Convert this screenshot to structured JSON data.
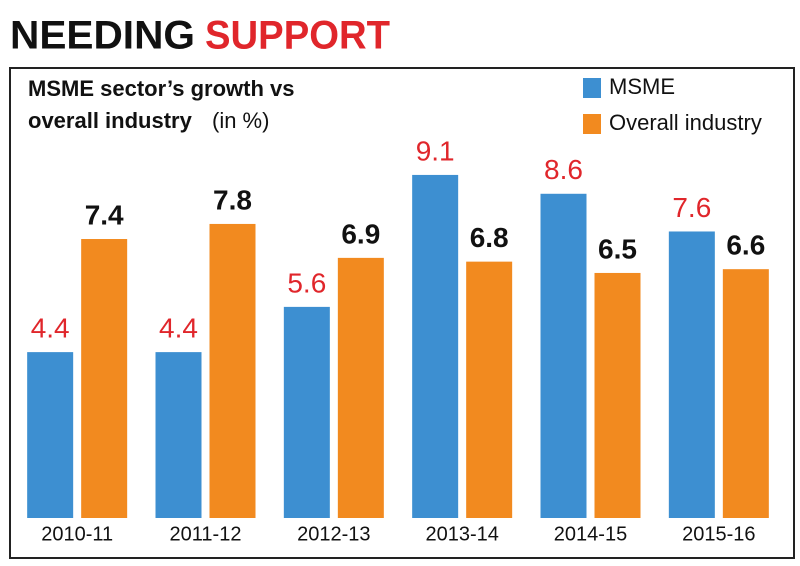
{
  "chart_data": {
    "type": "bar",
    "title": [
      "NEEDING",
      "SUPPORT"
    ],
    "subtitle": [
      "MSME sector’s growth vs",
      "overall industry",
      "(in %)"
    ],
    "categories": [
      "2010-11",
      "2011-12",
      "2012-13",
      "2013-14",
      "2014-15",
      "2015-16"
    ],
    "series": [
      {
        "name": "MSME",
        "color": "#3d8fd1",
        "label_color": "#e0262b",
        "values": [
          4.4,
          4.4,
          5.6,
          9.1,
          8.6,
          7.6
        ]
      },
      {
        "name": "Overall industry",
        "color": "#f28a1f",
        "label_color": "#111111",
        "values": [
          7.4,
          7.8,
          6.9,
          6.8,
          6.5,
          6.6
        ]
      }
    ],
    "ylim": [
      0,
      10
    ],
    "grid": false,
    "legend": "top-right"
  }
}
